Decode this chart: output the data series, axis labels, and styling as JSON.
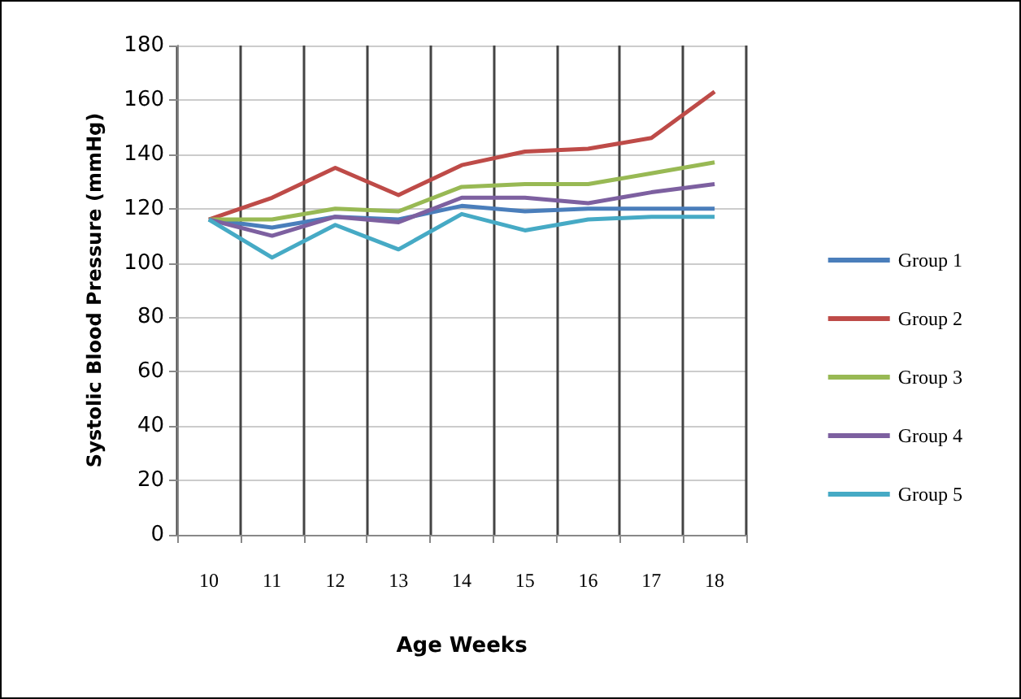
{
  "chart_data": {
    "type": "line",
    "xlabel": "Age Weeks",
    "ylabel": "Systolic Blood Pressure (mmHg)",
    "categories": [
      "10",
      "11",
      "12",
      "13",
      "14",
      "15",
      "16",
      "17",
      "18"
    ],
    "series": [
      {
        "name": "Group 1",
        "color": "#4a7ebb",
        "values": [
          116,
          113,
          117,
          116,
          121,
          119,
          120,
          120,
          120
        ]
      },
      {
        "name": "Group 2",
        "color": "#be4b48",
        "values": [
          116,
          124,
          135,
          125,
          136,
          141,
          142,
          146,
          163
        ]
      },
      {
        "name": "Group 3",
        "color": "#98b954",
        "values": [
          116,
          116,
          120,
          119,
          128,
          129,
          129,
          133,
          137
        ]
      },
      {
        "name": "Group 4",
        "color": "#7d60a0",
        "values": [
          116,
          110,
          117,
          115,
          124,
          124,
          122,
          126,
          129
        ]
      },
      {
        "name": "Group 5",
        "color": "#46aac5",
        "values": [
          116,
          102,
          114,
          105,
          118,
          112,
          116,
          117,
          117
        ]
      }
    ],
    "ylim": [
      0,
      180
    ],
    "yticks": [
      0,
      20,
      40,
      60,
      80,
      100,
      120,
      140,
      160,
      180
    ],
    "grid": true,
    "legend": "right",
    "marker": "none",
    "line_style": "solid"
  }
}
